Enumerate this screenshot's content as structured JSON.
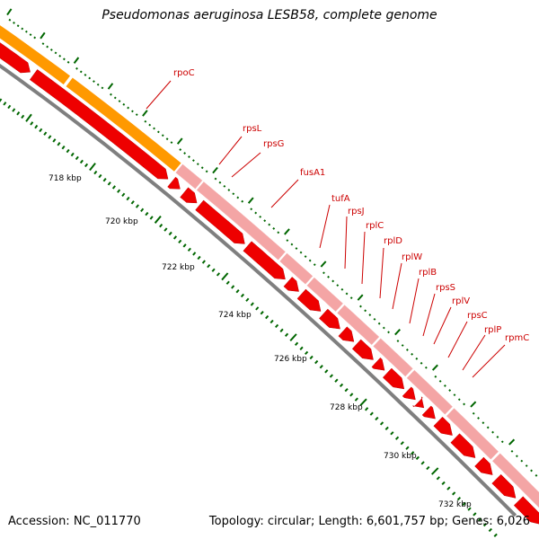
{
  "title": "Pseudomonas aeruginosa LESB58, complete genome",
  "footer": {
    "accession": "Accession: NC_011770",
    "summary": "Topology: circular; Length: 6,601,757 bp; Genes: 6,026"
  },
  "colors": {
    "orf_dark_red": "#ee0000",
    "orf_pink": "#f4a5a5",
    "orf_orange": "#ff9900",
    "backbone": "#7f7f7f",
    "ticks": "#006600",
    "gene_labels": "#cc0000"
  },
  "ruler_labels": [
    "718 kbp",
    "720 kbp",
    "722 kbp",
    "724 kbp",
    "726 kbp",
    "728 kbp",
    "730 kbp",
    "732 kbp"
  ],
  "genes": [
    "rpoC",
    "rpsL",
    "rpsG",
    "fusA1",
    "tufA",
    "rpsJ",
    "rplC",
    "rplD",
    "rplW",
    "rplB",
    "rpsS",
    "rplV",
    "rpsC",
    "rplP",
    "rpmC"
  ]
}
